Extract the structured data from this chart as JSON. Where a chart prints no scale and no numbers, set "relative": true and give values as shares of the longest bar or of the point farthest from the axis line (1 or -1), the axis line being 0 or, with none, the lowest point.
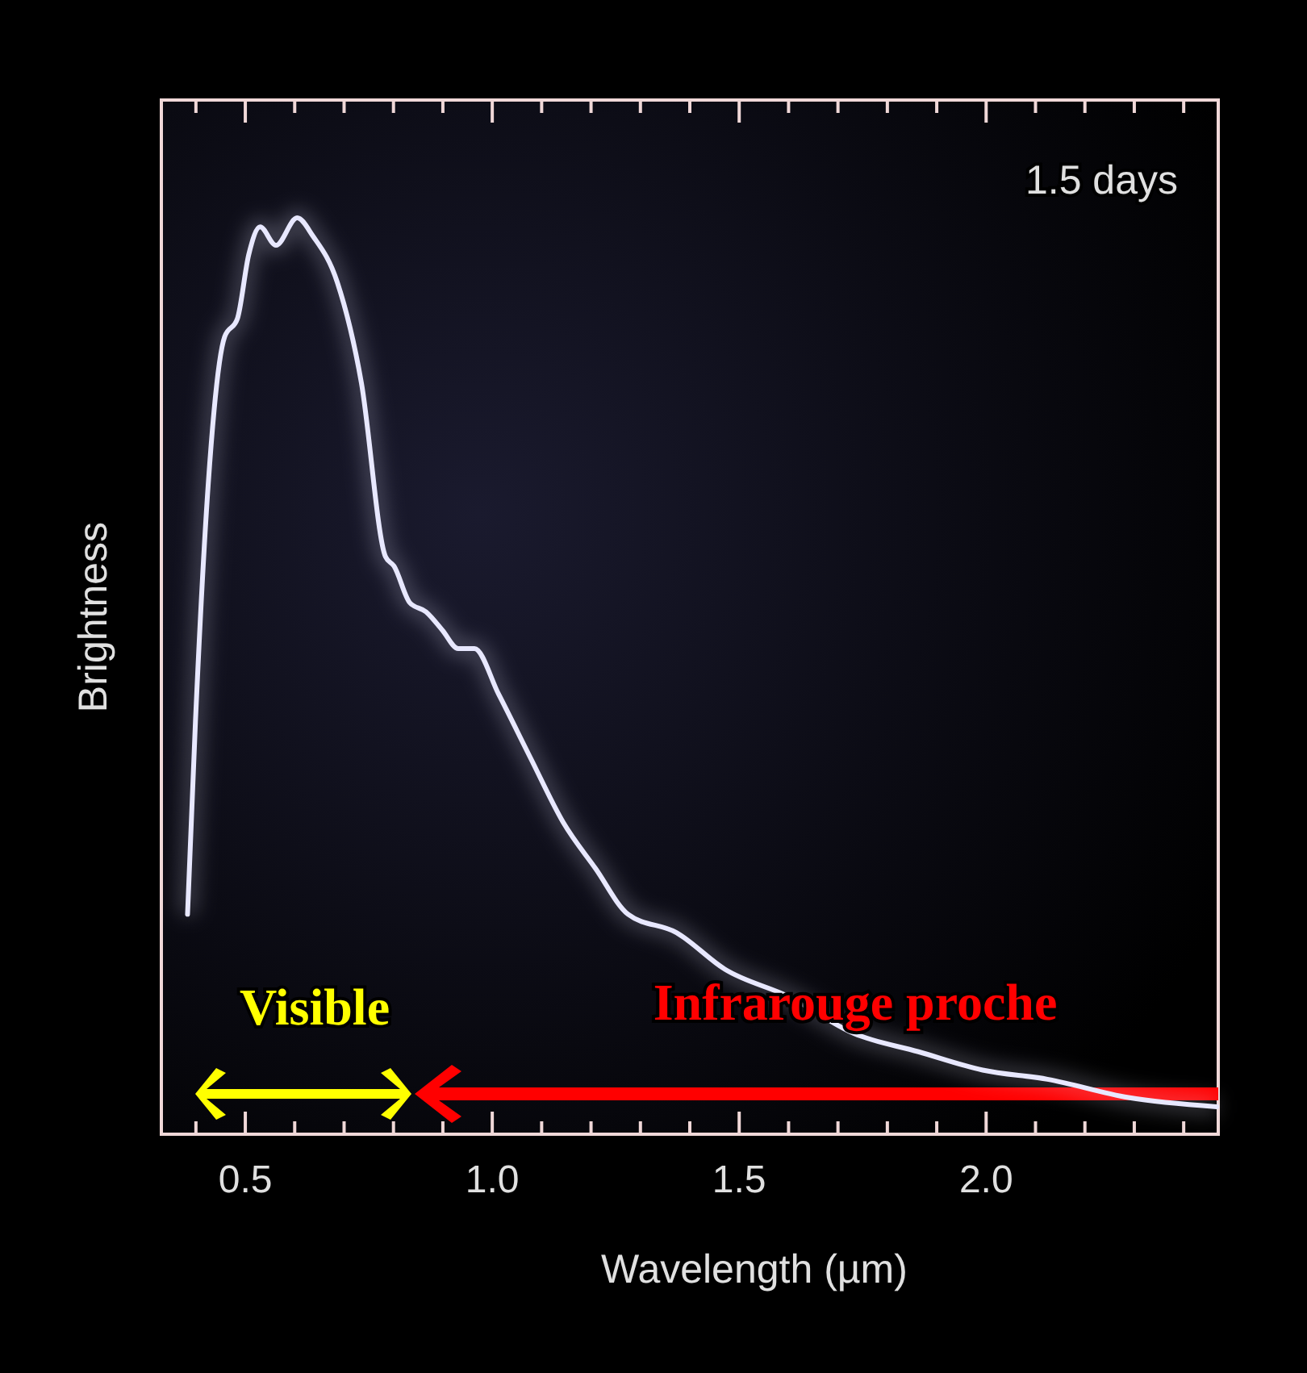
{
  "chart_data": {
    "type": "line",
    "xlabel": "Wavelength (µm)",
    "ylabel": "Brightness",
    "relative": true,
    "xlim": [
      0.33,
      2.47
    ],
    "xticks": [
      {
        "value": 0.4,
        "label": null
      },
      0.5,
      {
        "value": 0.6,
        "label": null
      },
      {
        "value": 0.7,
        "label": null
      },
      {
        "value": 0.8,
        "label": null
      },
      {
        "value": 0.9,
        "label": null
      },
      {
        "value": 1.0,
        "label": "1.0"
      },
      {
        "value": 1.1,
        "label": null
      },
      {
        "value": 1.2,
        "label": null
      },
      {
        "value": 1.3,
        "label": null
      },
      {
        "value": 1.4,
        "label": null
      },
      1.5,
      {
        "value": 1.6,
        "label": null
      },
      {
        "value": 1.7,
        "label": null
      },
      {
        "value": 1.8,
        "label": null
      },
      {
        "value": 1.9,
        "label": null
      },
      {
        "value": 2.0,
        "label": "2.0"
      },
      {
        "value": 2.1,
        "label": null
      },
      {
        "value": 2.2,
        "label": null
      },
      {
        "value": 2.3,
        "label": null
      },
      {
        "value": 2.4,
        "label": null
      }
    ],
    "x": [
      0.383,
      0.399,
      0.425,
      0.458,
      0.484,
      0.507,
      0.53,
      0.562,
      0.605,
      0.637,
      0.686,
      0.735,
      0.784,
      0.801,
      0.833,
      0.866,
      0.899,
      0.931,
      0.964,
      1.013,
      1.078,
      1.144,
      1.209,
      1.275,
      1.373,
      1.471,
      1.601,
      1.732,
      1.863,
      1.993,
      2.124,
      2.288,
      2.467
    ],
    "series": [
      {
        "color": "#e8e8ff",
        "values": [
          0.24,
          0.45,
          0.71,
          0.87,
          0.89,
          0.96,
          0.99,
          0.97,
          1.0,
          0.98,
          0.93,
          0.82,
          0.63,
          0.62,
          0.58,
          0.57,
          0.55,
          0.53,
          0.53,
          0.48,
          0.41,
          0.34,
          0.29,
          0.24,
          0.22,
          0.18,
          0.15,
          0.11,
          0.09,
          0.07,
          0.06,
          0.04,
          0.03
        ]
      }
    ],
    "annotations": [
      "1.5 days",
      "Visible",
      "Infrarouge proche"
    ],
    "grid": false,
    "line_style": "solid",
    "marker": "none"
  }
}
